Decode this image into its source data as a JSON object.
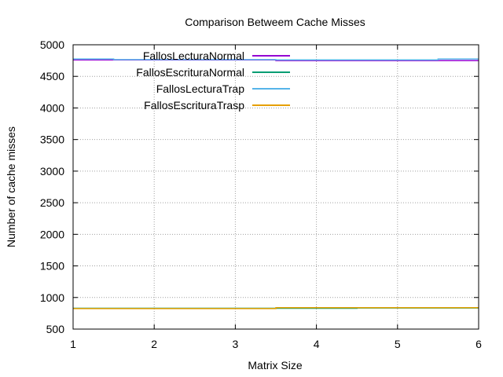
{
  "chart_data": {
    "type": "line",
    "title": "Comparison Betweem Cache Misses",
    "xlabel": "Matrix Size",
    "ylabel": "Number of cache misses",
    "xlim": [
      1,
      6
    ],
    "ylim": [
      500,
      5000
    ],
    "xticks": [
      1,
      2,
      3,
      4,
      5,
      6
    ],
    "yticks": [
      500,
      1000,
      1500,
      2000,
      2500,
      3000,
      3500,
      4000,
      4500,
      5000
    ],
    "grid": true,
    "legend_position": "top-left",
    "series": [
      {
        "name": "FallosLecturaNormal",
        "color": "#9400d3",
        "points": [
          [
            1,
            4760
          ],
          [
            1.5,
            4760
          ],
          [
            1.5,
            4760
          ],
          [
            3.5,
            4760
          ],
          [
            3.5,
            4750
          ],
          [
            5.5,
            4750
          ],
          [
            5.5,
            4750
          ],
          [
            6,
            4750
          ]
        ]
      },
      {
        "name": "FallosEscrituraNormal",
        "color": "#009e73",
        "points": [
          [
            1,
            830
          ],
          [
            1.5,
            830
          ],
          [
            1.5,
            830
          ],
          [
            3.5,
            830
          ],
          [
            3.5,
            830
          ],
          [
            4.5,
            830
          ],
          [
            4.5,
            835
          ],
          [
            6,
            835
          ]
        ]
      },
      {
        "name": "FallosLecturaTrap",
        "color": "#56b4e9",
        "points": [
          [
            1,
            4775
          ],
          [
            1.5,
            4775
          ],
          [
            1.5,
            4765
          ],
          [
            3.5,
            4765
          ],
          [
            3.5,
            4760
          ],
          [
            5.5,
            4760
          ],
          [
            5.5,
            4775
          ],
          [
            6,
            4775
          ]
        ]
      },
      {
        "name": "FallosEscrituraTrasp",
        "color": "#e69f00",
        "points": [
          [
            1,
            825
          ],
          [
            3.5,
            825
          ],
          [
            3.5,
            838
          ],
          [
            4.5,
            838
          ],
          [
            4.5,
            838
          ],
          [
            6,
            838
          ]
        ]
      }
    ]
  }
}
